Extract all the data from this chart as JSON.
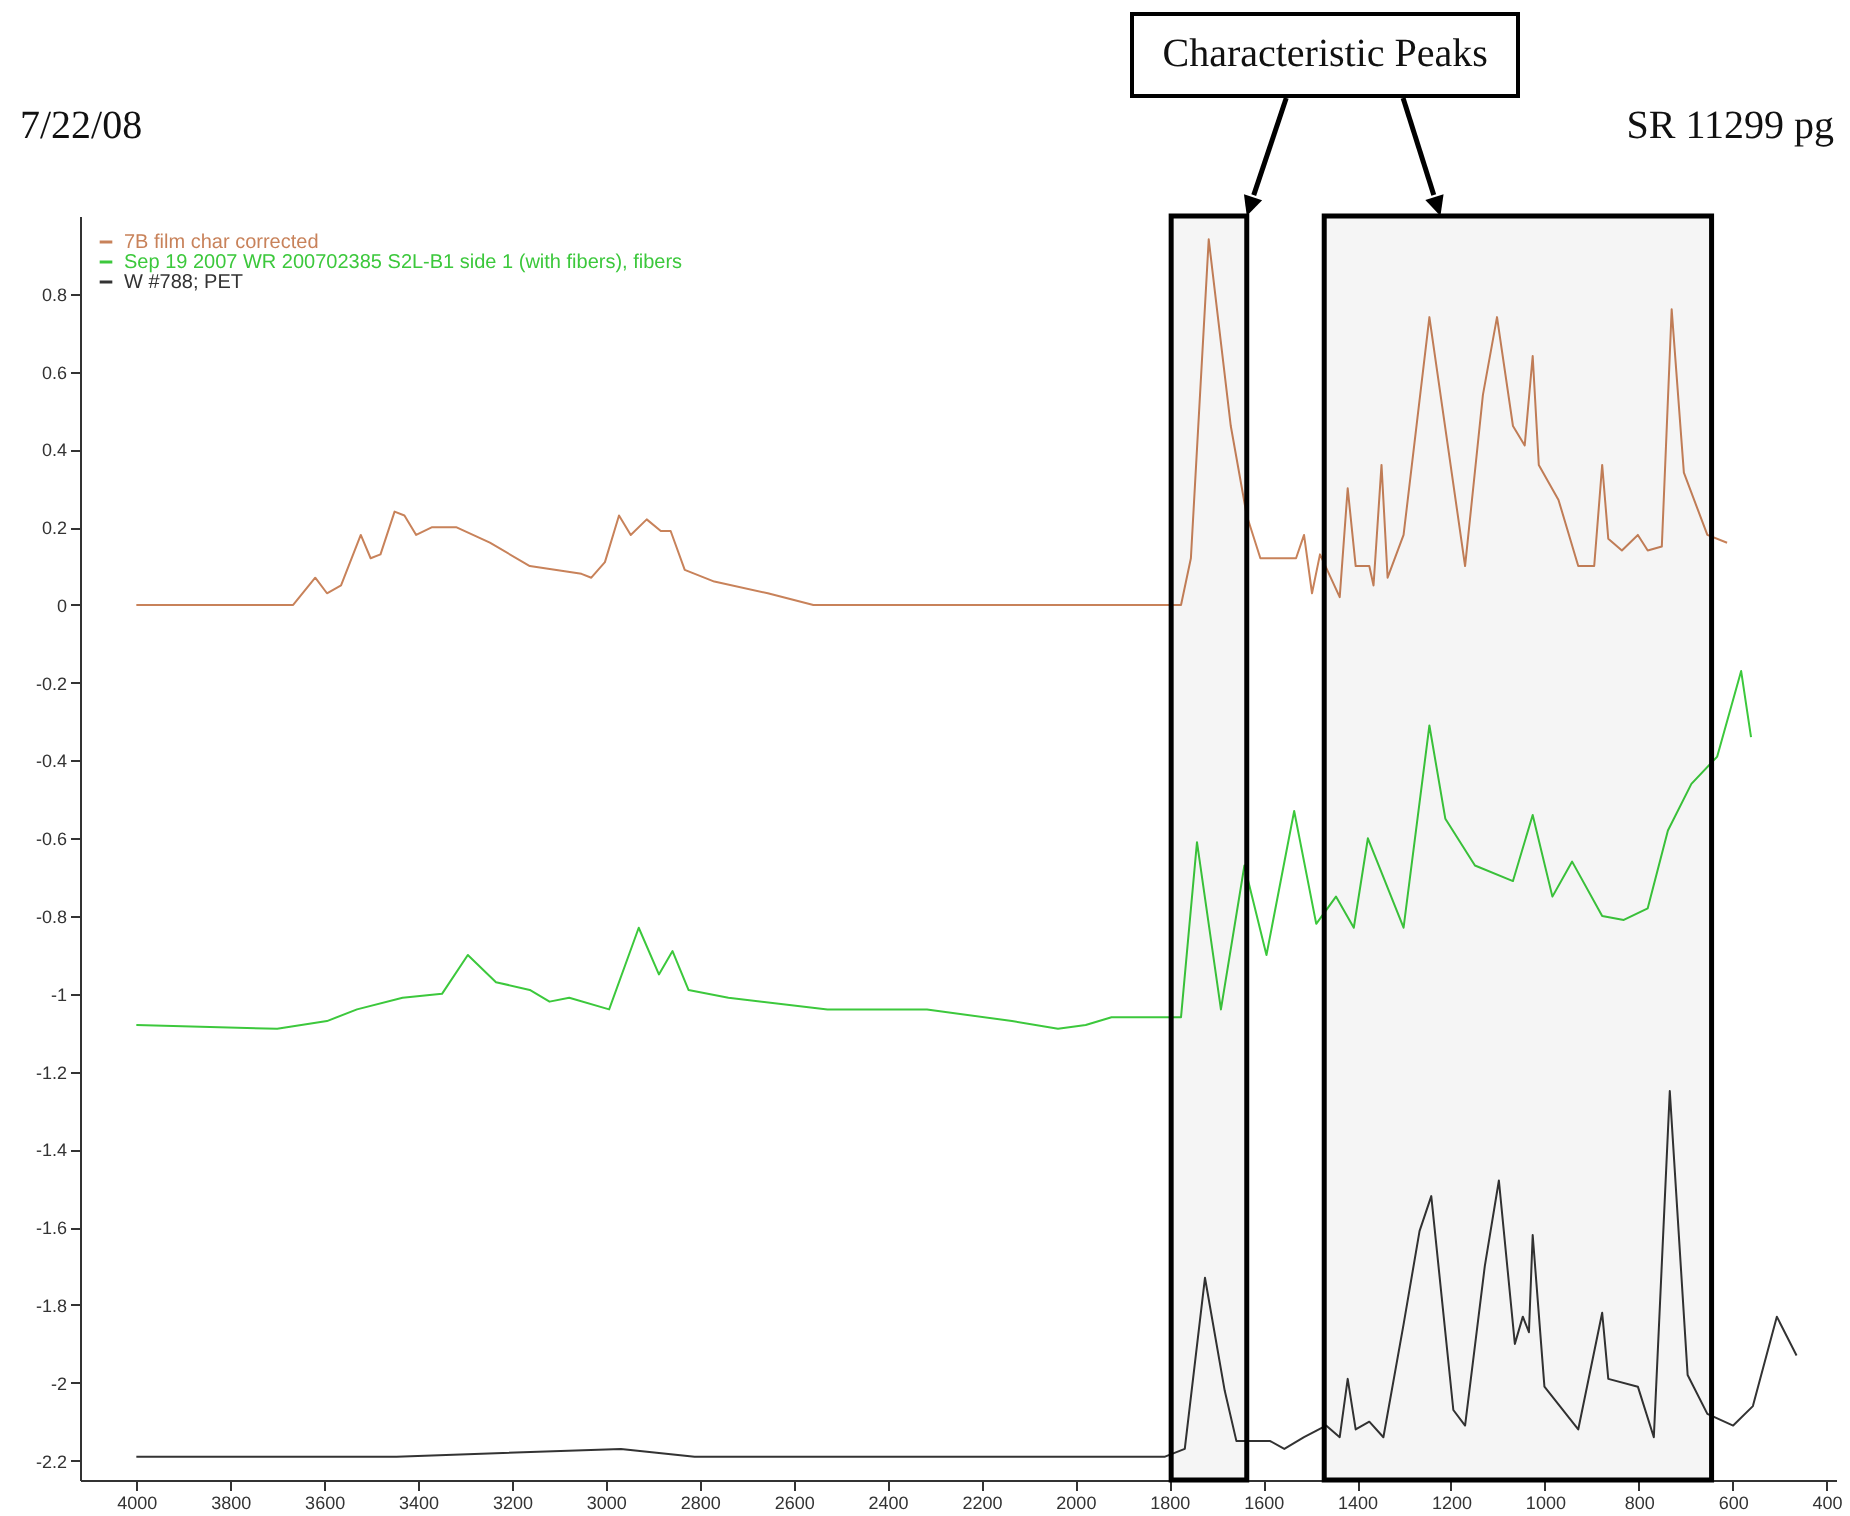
{
  "chart_data": {
    "type": "line",
    "annotations": [
      "7/22/08",
      "SR 11299 pg",
      "Characteristic Peaks"
    ],
    "xlim": [
      4120,
      380
    ],
    "xticks": [
      4000,
      3800,
      3600,
      3400,
      3200,
      3000,
      2800,
      2600,
      2400,
      2200,
      2000,
      1800,
      1600,
      1400,
      1200,
      1000,
      800,
      600,
      400
    ],
    "ylim": [
      -2.25,
      1.0
    ],
    "yticks": [
      -2.2,
      -2,
      -1.8,
      -1.6,
      -1.4,
      -1.2,
      -1,
      -0.8,
      -0.6,
      -0.4,
      -0.2,
      0,
      0.2,
      0.4,
      0.6,
      0.8
    ],
    "grid": false,
    "legend": "top left",
    "bands": [
      {
        "axis": "x",
        "from": 1796,
        "to": 1635,
        "color": "#000000"
      },
      {
        "axis": "x",
        "from": 1470,
        "to": 645,
        "color": "#000000"
      }
    ],
    "series": [
      {
        "name": "7B film char corrected",
        "color": "#c8825a",
        "x": [
          4000,
          3666,
          3619,
          3594,
          3564,
          3522,
          3501,
          3480,
          3450,
          3429,
          3404,
          3370,
          3319,
          3247,
          3162,
          3052,
          3031,
          3002,
          2972,
          2947,
          2913,
          2883,
          2862,
          2832,
          2769,
          2655,
          2558,
          1775,
          1754,
          1716,
          1669,
          1635,
          1606,
          1576,
          1530,
          1513,
          1496,
          1479,
          1437,
          1420,
          1403,
          1374,
          1365,
          1348,
          1335,
          1301,
          1246,
          1170,
          1132,
          1102,
          1068,
          1043,
          1026,
          1013,
          971,
          929,
          895,
          878,
          865,
          836,
          802,
          781,
          751,
          730,
          704,
          654,
          612
        ],
        "values": [
          0,
          0,
          0.07,
          0.03,
          0.05,
          0.18,
          0.12,
          0.13,
          0.24,
          0.23,
          0.18,
          0.2,
          0.2,
          0.16,
          0.1,
          0.08,
          0.07,
          0.11,
          0.23,
          0.18,
          0.22,
          0.19,
          0.19,
          0.09,
          0.06,
          0.03,
          0,
          0,
          0.12,
          0.94,
          0.46,
          0.23,
          0.12,
          0.12,
          0.12,
          0.18,
          0.03,
          0.13,
          0.02,
          0.3,
          0.1,
          0.1,
          0.05,
          0.36,
          0.07,
          0.18,
          0.74,
          0.1,
          0.54,
          0.74,
          0.46,
          0.41,
          0.64,
          0.36,
          0.27,
          0.1,
          0.1,
          0.36,
          0.17,
          0.14,
          0.18,
          0.14,
          0.15,
          0.76,
          0.34,
          0.18,
          0.16
        ]
      },
      {
        "name": "Sep 19 2007 WR 200702385 S2L-B1 side 1 (with fibers), fibers",
        "color": "#3cc83c",
        "x": [
          4000,
          3700,
          3594,
          3530,
          3433,
          3349,
          3294,
          3234,
          3162,
          3120,
          3078,
          2993,
          2930,
          2887,
          2858,
          2824,
          2739,
          2528,
          2316,
          2135,
          2037,
          1978,
          1923,
          1775,
          1741,
          1690,
          1640,
          1593,
          1534,
          1487,
          1445,
          1407,
          1377,
          1301,
          1246,
          1212,
          1149,
          1068,
          1026,
          984,
          942,
          878,
          832,
          781,
          738,
          688,
          633,
          582,
          561
        ],
        "values": [
          -1.08,
          -1.09,
          -1.07,
          -1.04,
          -1.01,
          -1,
          -0.9,
          -0.97,
          -0.99,
          -1.02,
          -1.01,
          -1.04,
          -0.83,
          -0.95,
          -0.89,
          -0.99,
          -1.01,
          -1.04,
          -1.04,
          -1.07,
          -1.09,
          -1.08,
          -1.06,
          -1.06,
          -0.61,
          -1.04,
          -0.67,
          -0.9,
          -0.53,
          -0.82,
          -0.75,
          -0.83,
          -0.6,
          -0.83,
          -0.31,
          -0.55,
          -0.67,
          -0.71,
          -0.54,
          -0.75,
          -0.66,
          -0.8,
          -0.81,
          -0.78,
          -0.58,
          -0.46,
          -0.39,
          -0.17,
          -0.34
        ]
      },
      {
        "name": "W #788; PET",
        "color": "#333333",
        "x": [
          4000,
          3446,
          2968,
          2811,
          1809,
          1767,
          1724,
          1682,
          1657,
          1585,
          1555,
          1513,
          1466,
          1437,
          1420,
          1403,
          1374,
          1344,
          1301,
          1267,
          1242,
          1195,
          1170,
          1128,
          1098,
          1064,
          1047,
          1034,
          1026,
          1001,
          929,
          878,
          865,
          802,
          768,
          734,
          696,
          654,
          599,
          557,
          506,
          464
        ],
        "values": [
          -2.19,
          -2.19,
          -2.17,
          -2.19,
          -2.19,
          -2.17,
          -1.73,
          -2.02,
          -2.15,
          -2.15,
          -2.17,
          -2.14,
          -2.11,
          -2.14,
          -1.99,
          -2.12,
          -2.1,
          -2.14,
          -1.85,
          -1.61,
          -1.52,
          -2.07,
          -2.11,
          -1.7,
          -1.48,
          -1.9,
          -1.83,
          -1.87,
          -1.62,
          -2.01,
          -2.12,
          -1.82,
          -1.99,
          -2.01,
          -2.14,
          -1.25,
          -1.98,
          -2.08,
          -2.11,
          -2.06,
          -1.83,
          -1.93
        ]
      }
    ]
  }
}
